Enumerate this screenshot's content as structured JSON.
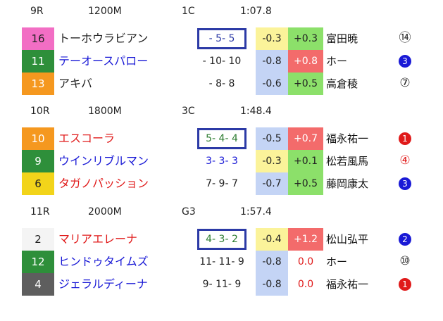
{
  "races": [
    {
      "race": "9R",
      "distance": "1200M",
      "cls": "1C",
      "time": "1:07.8",
      "rows": [
        {
          "num": "16",
          "num_bg": "#f26ec4",
          "num_fg": "#222",
          "name": "トーホウラビアン",
          "name_color": "#222",
          "pos": "- 5- 5",
          "pos_color": "#2c3aa6",
          "boxed": true,
          "c1": "-0.3",
          "c1_bg": "#fbf39a",
          "c2": "+0.3",
          "c2_bg": "#8ce06a",
          "c2_fg": "#222",
          "jockey": "富田暁",
          "mark": "⑭",
          "mark_style": "plain",
          "mark_color": "#222"
        },
        {
          "num": "11",
          "num_bg": "#2e8f3a",
          "num_fg": "#fff",
          "name": "テーオースパロー",
          "name_color": "#1a1ad6",
          "pos": "- 10- 10",
          "pos_color": "#222",
          "boxed": false,
          "c1": "-0.8",
          "c1_bg": "#c4d4f5",
          "c2": "+0.8",
          "c2_bg": "#f36b6b",
          "c2_fg": "#fff",
          "jockey": "ホー",
          "mark": "3",
          "mark_style": "filled",
          "mark_color": "#1a1ad6"
        },
        {
          "num": "13",
          "num_bg": "#f5981f",
          "num_fg": "#fff",
          "name": "アキバ",
          "name_color": "#222",
          "pos": "- 8- 8",
          "pos_color": "#222",
          "boxed": false,
          "c1": "-0.6",
          "c1_bg": "#c4d4f5",
          "c2": "+0.5",
          "c2_bg": "#8ce06a",
          "c2_fg": "#222",
          "jockey": "高倉稜",
          "mark": "⑦",
          "mark_style": "plain",
          "mark_color": "#222"
        }
      ]
    },
    {
      "race": "10R",
      "distance": "1800M",
      "cls": "3C",
      "time": "1:48.4",
      "rows": [
        {
          "num": "10",
          "num_bg": "#f5981f",
          "num_fg": "#fff",
          "name": "エスコーラ",
          "name_color": "#e01a1a",
          "pos": "5- 4- 4",
          "pos_color": "#2e7d32",
          "boxed": true,
          "c1": "-0.5",
          "c1_bg": "#c4d4f5",
          "c2": "+0.7",
          "c2_bg": "#f36b6b",
          "c2_fg": "#fff",
          "jockey": "福永祐一",
          "mark": "1",
          "mark_style": "filled",
          "mark_color": "#e01a1a"
        },
        {
          "num": "9",
          "num_bg": "#2e8f3a",
          "num_fg": "#fff",
          "name": "ウインリブルマン",
          "name_color": "#1a1ad6",
          "pos": "3- 3- 3",
          "pos_color": "#1a1ad6",
          "boxed": false,
          "c1": "-0.3",
          "c1_bg": "#fbf39a",
          "c2": "+0.1",
          "c2_bg": "#8ce06a",
          "c2_fg": "#222",
          "jockey": "松若風馬",
          "mark": "④",
          "mark_style": "plain",
          "mark_color": "#e01a1a"
        },
        {
          "num": "6",
          "num_bg": "#f2d41a",
          "num_fg": "#222",
          "name": "タガノパッション",
          "name_color": "#e01a1a",
          "pos": "7- 9- 7",
          "pos_color": "#222",
          "boxed": false,
          "c1": "-0.7",
          "c1_bg": "#c4d4f5",
          "c2": "+0.5",
          "c2_bg": "#8ce06a",
          "c2_fg": "#222",
          "jockey": "藤岡康太",
          "mark": "3",
          "mark_style": "filled",
          "mark_color": "#1a1ad6"
        }
      ]
    },
    {
      "race": "11R",
      "distance": "2000M",
      "cls": "G3",
      "time": "1:57.4",
      "rows": [
        {
          "num": "2",
          "num_bg": "#f4f4f4",
          "num_fg": "#222",
          "name": "マリアエレーナ",
          "name_color": "#e01a1a",
          "pos": "4- 3- 2",
          "pos_color": "#2e7d32",
          "boxed": true,
          "c1": "-0.4",
          "c1_bg": "#fbf39a",
          "c2": "+1.2",
          "c2_bg": "#f36b6b",
          "c2_fg": "#fff",
          "jockey": "松山弘平",
          "mark": "2",
          "mark_style": "filled",
          "mark_color": "#1a1ad6"
        },
        {
          "num": "12",
          "num_bg": "#2e8f3a",
          "num_fg": "#fff",
          "name": "ヒンドゥタイムズ",
          "name_color": "#1a1ad6",
          "pos": "11- 11- 9",
          "pos_color": "#222",
          "boxed": false,
          "c1": "-0.8",
          "c1_bg": "#c4d4f5",
          "c2": "0.0",
          "c2_bg": "#ffffff",
          "c2_fg": "#e01a1a",
          "jockey": "ホー",
          "mark": "⑩",
          "mark_style": "plain",
          "mark_color": "#222"
        },
        {
          "num": "4",
          "num_bg": "#5e5e5e",
          "num_fg": "#fff",
          "name": "ジェラルディーナ",
          "name_color": "#1a1ad6",
          "pos": "9- 11- 9",
          "pos_color": "#222",
          "boxed": false,
          "c1": "-0.8",
          "c1_bg": "#c4d4f5",
          "c2": "0.0",
          "c2_bg": "#ffffff",
          "c2_fg": "#e01a1a",
          "jockey": "福永祐一",
          "mark": "1",
          "mark_style": "filled",
          "mark_color": "#e01a1a"
        }
      ]
    }
  ]
}
